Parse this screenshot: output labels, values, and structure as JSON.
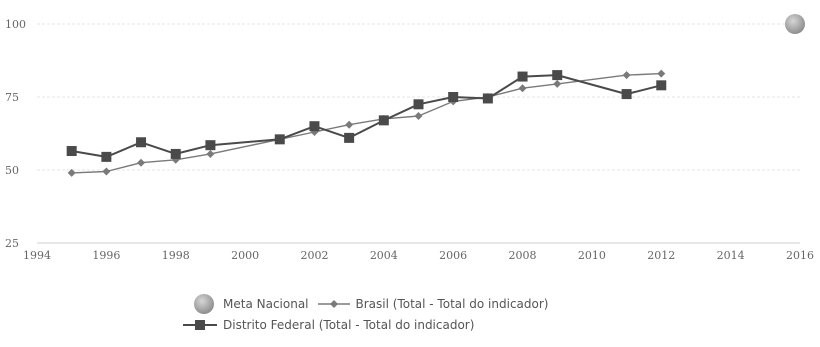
{
  "colors": {
    "meta": "#9a9a9a",
    "brasil": "#7a7a7a",
    "df": "#4a4a4a",
    "grid": "#e6e6e6",
    "axis": "#cfcfcf"
  },
  "chart_data": {
    "type": "line",
    "title": "",
    "xlabel": "",
    "ylabel": "",
    "xlim": [
      1994,
      2016
    ],
    "ylim": [
      25,
      100
    ],
    "xticks": [
      1994,
      1996,
      1998,
      2000,
      2002,
      2004,
      2006,
      2008,
      2010,
      2012,
      2014,
      2016
    ],
    "yticks": [
      25,
      50,
      75,
      100
    ],
    "grid": true,
    "legend_position": "bottom",
    "series": [
      {
        "name": "Brasil (Total - Total do indicador)",
        "marker": "diamond",
        "x": [
          1995,
          1996,
          1997,
          1998,
          1999,
          2001,
          2002,
          2003,
          2004,
          2005,
          2006,
          2007,
          2008,
          2009,
          2011,
          2012
        ],
        "y": [
          49,
          49.5,
          52.5,
          53.5,
          55.5,
          60.5,
          63,
          65.5,
          67.5,
          68.5,
          73.5,
          75,
          78,
          79.5,
          82.5,
          83
        ]
      },
      {
        "name": "Distrito Federal (Total - Total do indicador)",
        "marker": "square",
        "x": [
          1995,
          1996,
          1997,
          1998,
          1999,
          2001,
          2002,
          2003,
          2004,
          2005,
          2006,
          2007,
          2008,
          2009,
          2011,
          2012
        ],
        "y": [
          56.5,
          54.5,
          59.5,
          55.5,
          58.5,
          60.5,
          65,
          61,
          67,
          72.5,
          75,
          74.5,
          82,
          82.5,
          76,
          79
        ]
      },
      {
        "name": "Meta Nacional",
        "marker": "circle",
        "x": [
          2016
        ],
        "y": [
          100
        ]
      }
    ]
  },
  "legend": {
    "meta": "Meta Nacional",
    "brasil": "Brasil (Total - Total do indicador)",
    "df": "Distrito Federal (Total - Total do indicador)"
  }
}
